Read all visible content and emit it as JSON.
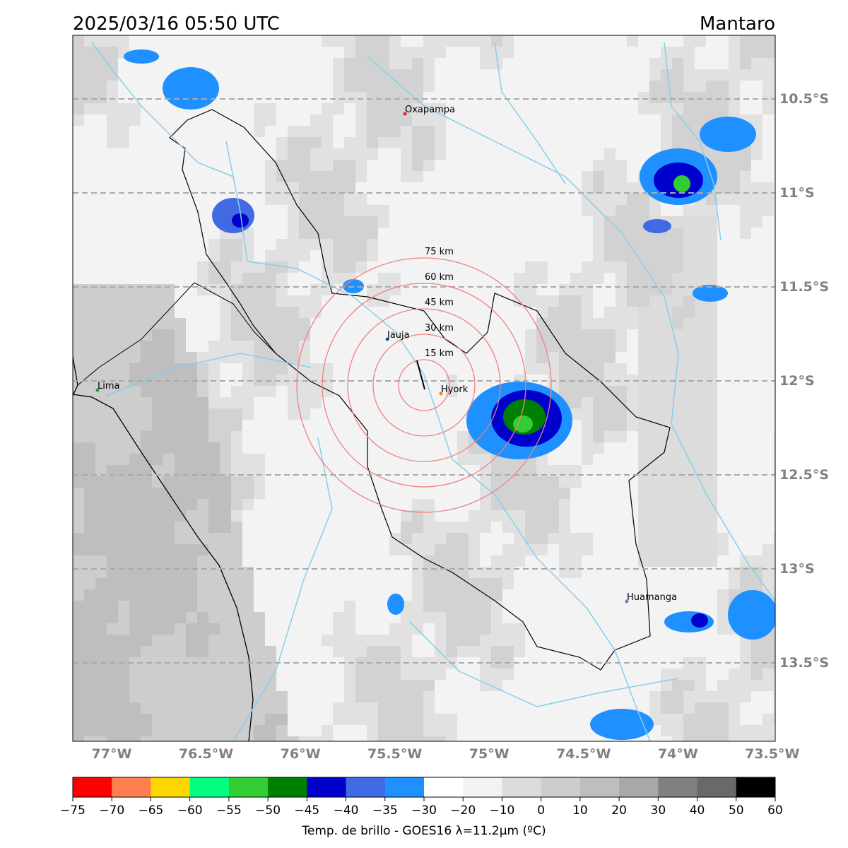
{
  "header": {
    "title": "2025/03/16 05:50 UTC",
    "region": "Mantaro"
  },
  "map": {
    "lat_ticks": [
      {
        "value": -10.5,
        "label": "10.5°S"
      },
      {
        "value": -11,
        "label": "11°S"
      },
      {
        "value": -11.5,
        "label": "11.5°S"
      },
      {
        "value": -12,
        "label": "12°S"
      },
      {
        "value": -12.5,
        "label": "12.5°S"
      },
      {
        "value": -13,
        "label": "13°S"
      },
      {
        "value": -13.5,
        "label": "13.5°S"
      }
    ],
    "lon_ticks": [
      {
        "value": -77,
        "label": "77°W"
      },
      {
        "value": -76.5,
        "label": "76.5°W"
      },
      {
        "value": -76,
        "label": "76°W"
      },
      {
        "value": -75.5,
        "label": "75.5°W"
      },
      {
        "value": -75,
        "label": "75°W"
      },
      {
        "value": -74.5,
        "label": "74.5°W"
      },
      {
        "value": -74,
        "label": "74°W"
      },
      {
        "value": -73.5,
        "label": "73.5°W"
      }
    ],
    "cities": [
      "Oxapampa",
      "Jauja",
      "Hyork",
      "Lima",
      "Huamanga"
    ],
    "rings": [
      "15 km",
      "30 km",
      "45 km",
      "60 km",
      "75 km"
    ]
  },
  "colorbar": {
    "label": "Temp. de brillo - GOES16 λ=11.2μm (ºC)",
    "colors": [
      "#ff0000",
      "#ff7f50",
      "#ffd700",
      "#00ff7f",
      "#32cd32",
      "#008000",
      "#0000cd",
      "#4169e1",
      "#1e90ff",
      "#ffffff",
      "#f2f2f2",
      "#dcdcdc",
      "#cdcdcd",
      "#bebebe",
      "#a8a8a8",
      "#808080",
      "#696969",
      "#000000"
    ],
    "ticks": [
      {
        "value": -75,
        "label": "−75"
      },
      {
        "value": -70,
        "label": "−70"
      },
      {
        "value": -65,
        "label": "−65"
      },
      {
        "value": -60,
        "label": "−60"
      },
      {
        "value": -55,
        "label": "−55"
      },
      {
        "value": -50,
        "label": "−50"
      },
      {
        "value": -45,
        "label": "−45"
      },
      {
        "value": -40,
        "label": "−40"
      },
      {
        "value": -35,
        "label": "−35"
      },
      {
        "value": -30,
        "label": "−30"
      },
      {
        "value": -20,
        "label": "−20"
      },
      {
        "value": -10,
        "label": "−10"
      },
      0,
      10,
      20,
      30,
      40,
      50,
      60
    ]
  }
}
